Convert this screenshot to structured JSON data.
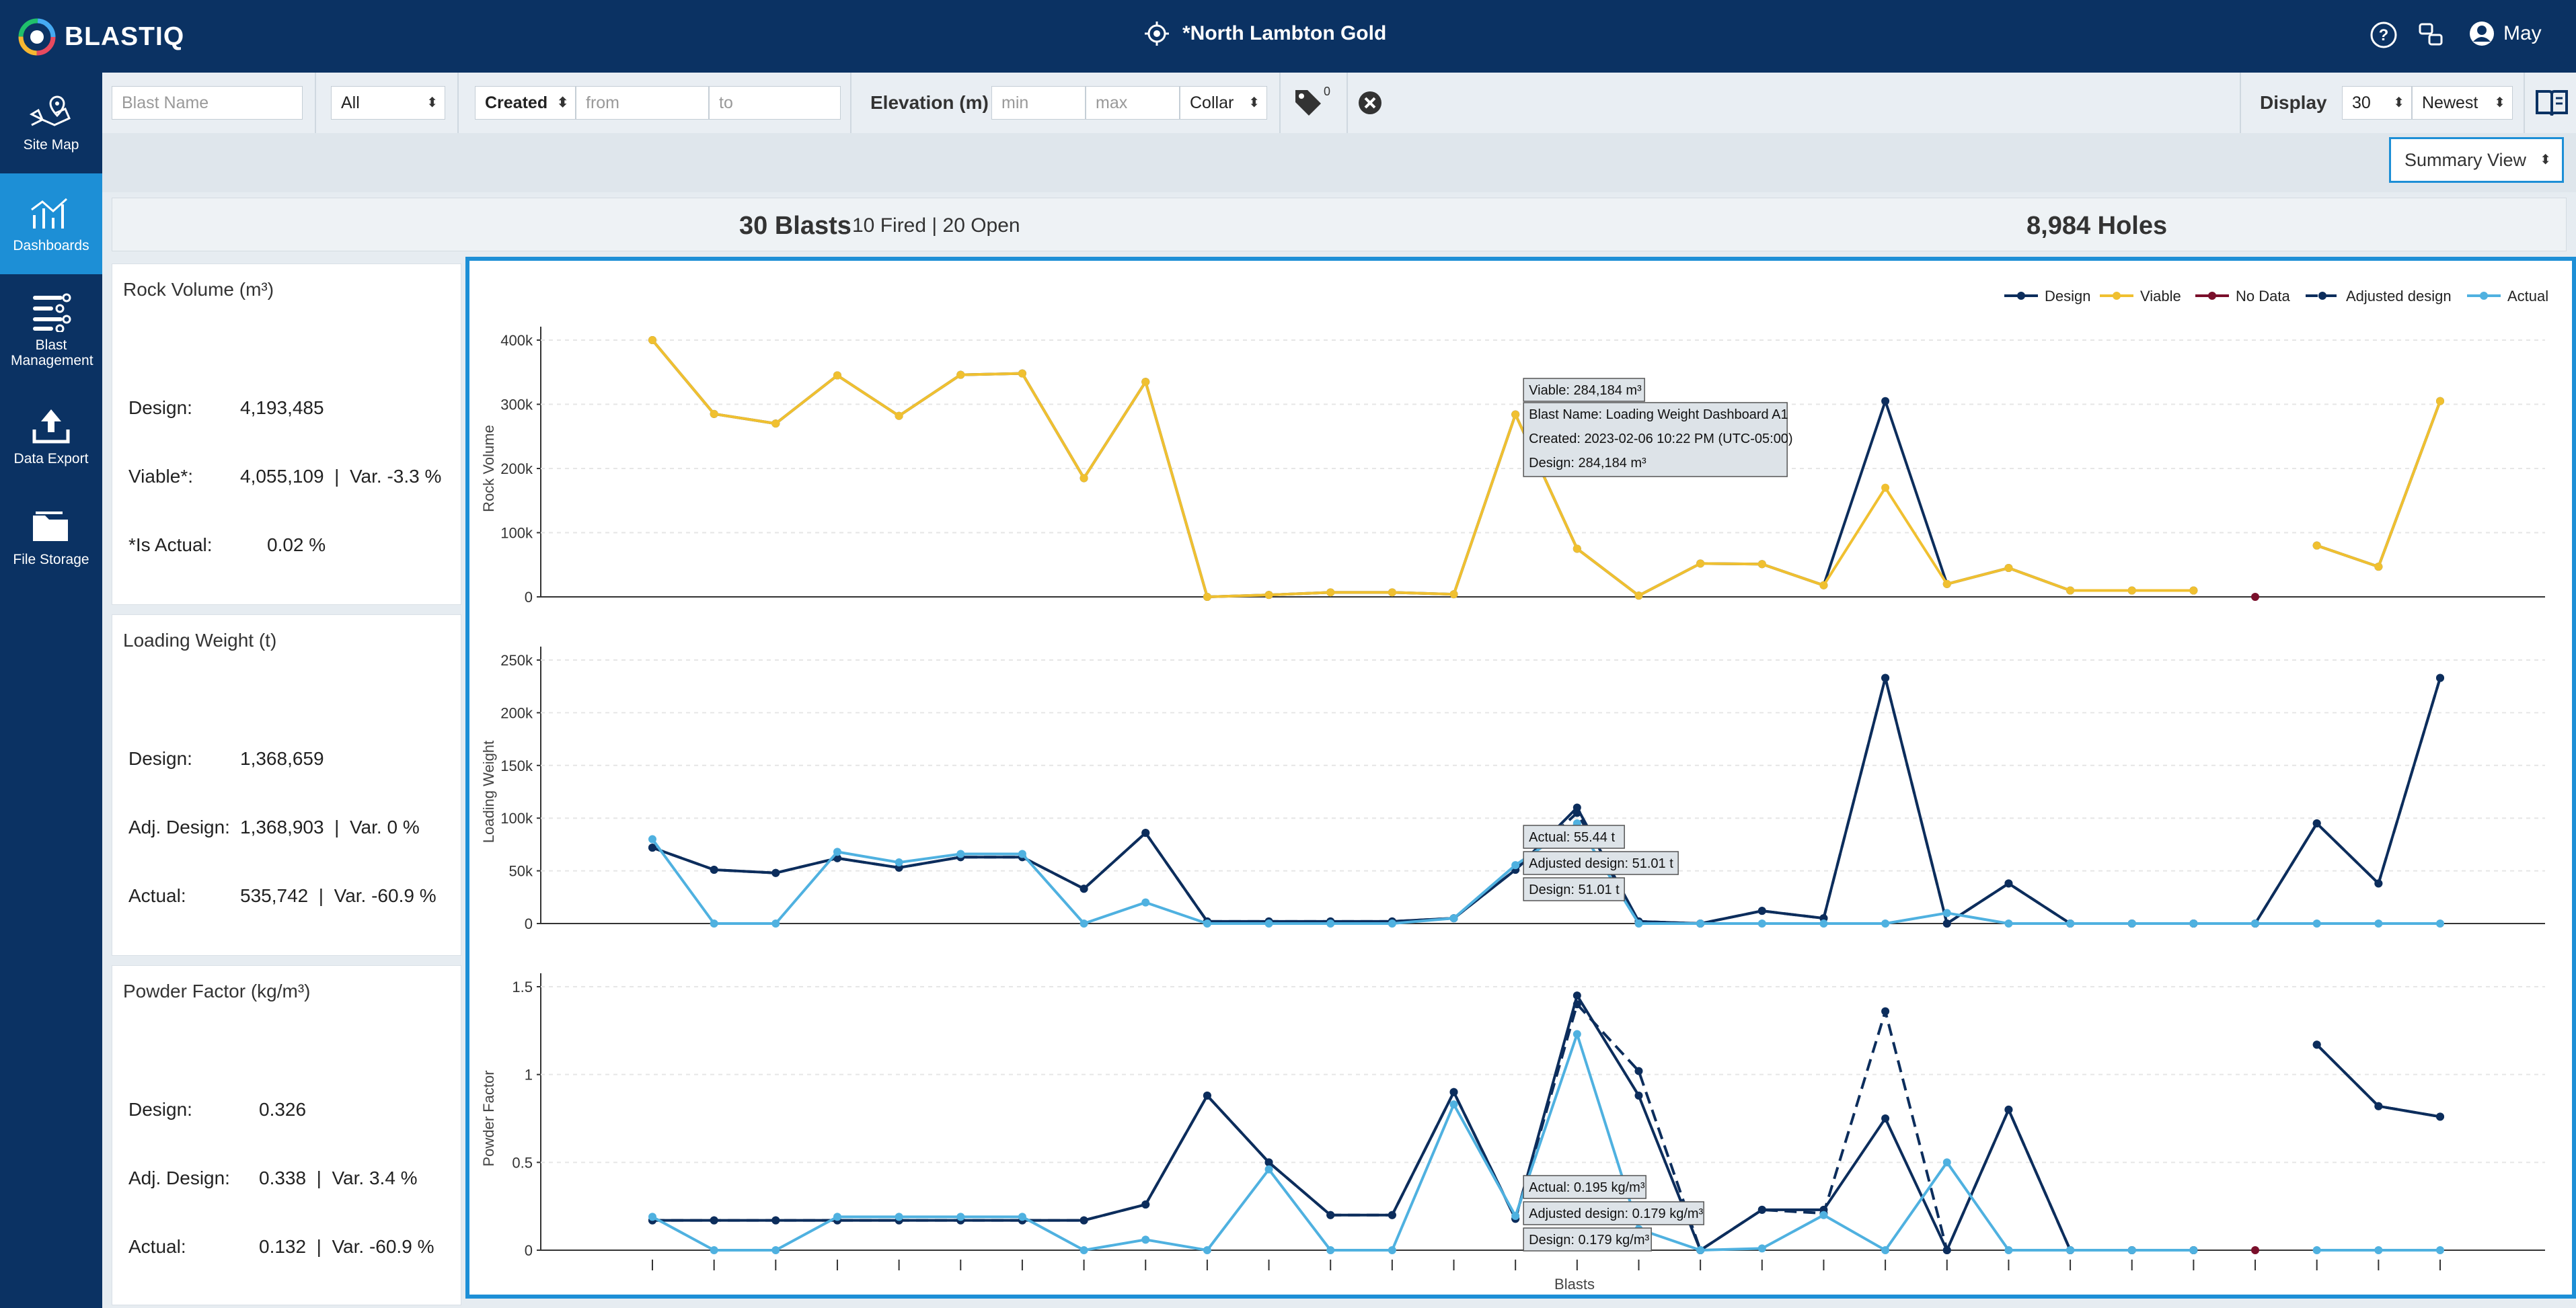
{
  "app": {
    "logo": "BLASTIQ",
    "site_name": "*North Lambton Gold",
    "user": "May"
  },
  "colors": {
    "navy": "#0b3263",
    "accent": "#1d8fd6",
    "design": "#0c2d5c",
    "viable": "#f0c030",
    "no_data": "#7a0f2b",
    "adjusted": "#0c2d5c",
    "actual": "#4fb1e0"
  },
  "sidebar": {
    "items": [
      {
        "label": "Site Map",
        "icon": "map-pin-icon"
      },
      {
        "label": "Dashboards",
        "icon": "dashboard-chart-icon"
      },
      {
        "label": "Blast Management",
        "icon": "list-icon"
      },
      {
        "label": "Data Export",
        "icon": "upload-icon"
      },
      {
        "label": "File Storage",
        "icon": "folder-icon"
      }
    ]
  },
  "filters": {
    "blast_name_placeholder": "Blast Name",
    "status_value": "All",
    "date_type_value": "Created",
    "from_placeholder": "from",
    "to_placeholder": "to",
    "elevation_label": "Elevation (m)",
    "min_placeholder": "min",
    "max_placeholder": "max",
    "collar_value": "Collar",
    "tag_count": "0",
    "display_label": "Display",
    "display_count": "30",
    "sort_value": "Newest"
  },
  "view": {
    "mode": "Summary View"
  },
  "totals": {
    "blasts": "30 Blasts",
    "fired_open": "10 Fired | 20 Open",
    "holes": "8,984 Holes"
  },
  "cards": {
    "rock_volume": {
      "title": "Rock Volume (m³)",
      "design_label": "Design:",
      "design_value": "4,193,485",
      "viable_label": "Viable*:",
      "viable_value": "4,055,109  |  Var. -3.3 %",
      "is_actual_label": "*Is Actual:",
      "is_actual_value": "0.02 %"
    },
    "loading_weight": {
      "title": "Loading Weight (t)",
      "design_label": "Design:",
      "design_value": "1,368,659",
      "adj_label": "Adj. Design:",
      "adj_value": "1,368,903  |  Var. 0 %",
      "actual_label": "Actual:",
      "actual_value": "535,742  |  Var. -60.9 %"
    },
    "powder_factor": {
      "title": "Powder Factor (kg/m³)",
      "design_label": "Design:",
      "design_value": "0.326",
      "adj_label": "Adj. Design:",
      "adj_value": "0.338  |  Var. 3.4 %",
      "actual_label": "Actual:",
      "actual_value": "0.132  |  Var. -60.9 %"
    }
  },
  "chart_data": [
    {
      "type": "line",
      "title": "Rock Volume",
      "ylabel": "Rock Volume",
      "xlabel": "",
      "ylim": [
        0,
        400000
      ],
      "yticks": [
        0,
        100000,
        200000,
        300000,
        400000
      ],
      "ytick_labels": [
        "0",
        "100k",
        "200k",
        "300k",
        "400k"
      ],
      "series": [
        {
          "name": "Design",
          "values": [
            400000,
            285000,
            270000,
            345000,
            282000,
            346000,
            348000,
            185000,
            335000,
            0,
            3000,
            7000,
            7000,
            4000,
            284184,
            75000,
            2000,
            52000,
            51000,
            18000,
            305000,
            20000,
            45000,
            10000,
            10000,
            10000,
            null,
            80000,
            47000,
            305000
          ]
        },
        {
          "name": "Viable",
          "values": [
            400000,
            285000,
            270000,
            345000,
            282000,
            346000,
            348000,
            185000,
            335000,
            0,
            3000,
            7000,
            7000,
            4000,
            284184,
            75000,
            2000,
            52000,
            51000,
            18000,
            170000,
            20000,
            45000,
            10000,
            10000,
            10000,
            null,
            80000,
            47000,
            305000
          ]
        },
        {
          "name": "No Data",
          "values": [
            null,
            null,
            null,
            null,
            null,
            null,
            null,
            null,
            null,
            null,
            null,
            null,
            null,
            null,
            null,
            null,
            null,
            null,
            null,
            null,
            null,
            null,
            null,
            null,
            null,
            null,
            0,
            null,
            null,
            null
          ]
        }
      ],
      "tooltip": [
        "Viable: 284,184 m³",
        "Blast Name: Loading Weight Dashboard A1",
        "Created: 2023-02-06 10:22 PM (UTC-05:00)",
        "Design: 284,184 m³"
      ]
    },
    {
      "type": "line",
      "title": "Loading Weight",
      "ylabel": "Loading Weight",
      "xlabel": "",
      "ylim": [
        0,
        250000
      ],
      "yticks": [
        0,
        50000,
        100000,
        150000,
        200000,
        250000
      ],
      "ytick_labels": [
        "0",
        "50k",
        "100k",
        "150k",
        "200k",
        "250k"
      ],
      "series": [
        {
          "name": "Design",
          "values": [
            72000,
            51000,
            48000,
            62000,
            53000,
            63000,
            63000,
            33000,
            86000,
            2000,
            2000,
            2000,
            2000,
            5000,
            51010,
            110000,
            2000,
            0,
            12000,
            5000,
            233000,
            0,
            38000,
            0,
            0,
            0,
            0,
            95000,
            38000,
            233000
          ]
        },
        {
          "name": "Adjusted design",
          "values": [
            72000,
            51000,
            48000,
            62000,
            53000,
            63000,
            63000,
            33000,
            86000,
            2000,
            2000,
            2000,
            2000,
            5000,
            51010,
            105000,
            2000,
            0,
            12000,
            5000,
            233000,
            0,
            38000,
            0,
            0,
            0,
            0,
            95000,
            38000,
            233000
          ]
        },
        {
          "name": "Actual",
          "values": [
            80000,
            0,
            0,
            68000,
            58000,
            66000,
            66000,
            0,
            20000,
            0,
            0,
            0,
            0,
            5000,
            55440,
            95000,
            0,
            0,
            0,
            0,
            0,
            10000,
            0,
            0,
            0,
            0,
            0,
            0,
            0,
            0
          ]
        }
      ],
      "tooltip": [
        "Actual: 55.44 t",
        "Adjusted design: 51.01 t",
        "Design: 51.01 t"
      ]
    },
    {
      "type": "line",
      "title": "Powder Factor",
      "ylabel": "Powder Factor",
      "xlabel": "Blasts",
      "ylim": [
        0,
        1.5
      ],
      "yticks": [
        0,
        0.5,
        1,
        1.5
      ],
      "ytick_labels": [
        "0",
        "0.5",
        "1",
        "1.5"
      ],
      "series": [
        {
          "name": "Design",
          "values": [
            0.17,
            0.17,
            0.17,
            0.17,
            0.17,
            0.17,
            0.17,
            0.17,
            0.26,
            0.88,
            0.5,
            0.2,
            0.2,
            0.9,
            0.179,
            1.45,
            0.88,
            0.0,
            0.23,
            0.23,
            0.75,
            0.0,
            0.8,
            0.0,
            0.0,
            0.0,
            null,
            1.17,
            0.82,
            0.76
          ]
        },
        {
          "name": "Adjusted design",
          "values": [
            0.17,
            0.17,
            0.17,
            0.17,
            0.17,
            0.17,
            0.17,
            0.17,
            0.26,
            0.88,
            0.5,
            0.2,
            0.2,
            0.9,
            0.179,
            1.4,
            1.02,
            0.0,
            0.23,
            0.21,
            1.36,
            0.0,
            0.8,
            0.0,
            0.0,
            0.0,
            null,
            1.17,
            0.82,
            0.76
          ]
        },
        {
          "name": "Actual",
          "values": [
            0.19,
            0.0,
            0.0,
            0.19,
            0.19,
            0.19,
            0.19,
            0.0,
            0.06,
            0.0,
            0.46,
            0.0,
            0.0,
            0.83,
            0.195,
            1.23,
            0.12,
            0.0,
            0.01,
            0.2,
            0.0,
            0.5,
            0.0,
            0.0,
            0.0,
            0.0,
            null,
            0.0,
            0.0,
            0.0
          ]
        },
        {
          "name": "No Data",
          "values": [
            null,
            null,
            null,
            null,
            null,
            null,
            null,
            null,
            null,
            null,
            null,
            null,
            null,
            null,
            null,
            null,
            null,
            null,
            null,
            null,
            null,
            null,
            null,
            null,
            null,
            null,
            0,
            null,
            null,
            null
          ]
        }
      ],
      "tooltip": [
        "Actual: 0.195 kg/m³",
        "Adjusted design: 0.179 kg/m³",
        "Design: 0.179 kg/m³"
      ]
    }
  ],
  "legend": [
    "Design",
    "Viable",
    "No Data",
    "Adjusted design",
    "Actual"
  ]
}
